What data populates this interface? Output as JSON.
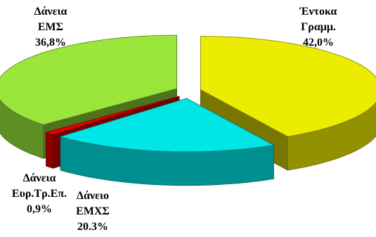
{
  "chart_data": {
    "type": "pie",
    "style": "3d-exploded",
    "slices": [
      {
        "name_lines": [
          "Έντοκα",
          "Γραμμ."
        ],
        "value": 42.0,
        "value_label": "42,0%",
        "color": "#ECEC00"
      },
      {
        "name_lines": [
          "Δάνειο",
          "ΕΜΧΣ"
        ],
        "value": 20.3,
        "value_label": "20.3%",
        "color": "#00E6E6"
      },
      {
        "name_lines": [
          "Δάνεια",
          "Ευρ.Τρ.Επ."
        ],
        "value": 0.9,
        "value_label": "0,9%",
        "color": "#E60000"
      },
      {
        "name_lines": [
          "Δάνεια",
          "ΕΜΣ"
        ],
        "value": 36.8,
        "value_label": "36,8%",
        "color": "#9AE63A"
      }
    ],
    "legend": "none"
  }
}
